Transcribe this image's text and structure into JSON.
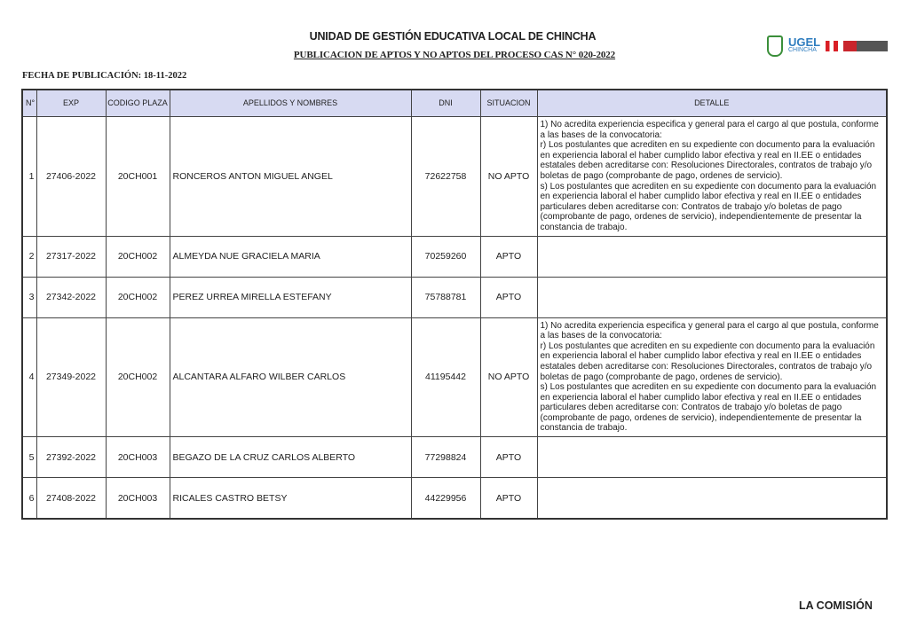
{
  "header": {
    "title": "UNIDAD DE GESTIÓN EDUCATIVA LOCAL DE CHINCHA",
    "subtitle": "PUBLICACION DE APTOS Y NO APTOS DEL PROCESO CAS N° 020-2022",
    "fecha": "FECHA DE PUBLICACIÓN: 18-11-2022",
    "logo": {
      "text": "UGEL",
      "sub": "CHINCHA"
    }
  },
  "table": {
    "columns": [
      "N°",
      "EXP",
      "CODIGO PLAZA",
      "APELLIDOS Y NOMBRES",
      "DNI",
      "SITUACION",
      "DETALLE"
    ],
    "detail_no_apto": [
      "1) No acredita experiencia especifica y general para el cargo al que postula, conforme a las bases de la convocatoria:",
      "r) Los postulantes que acrediten en su expediente con documento para la evaluación en experiencia laboral el haber cumplido labor efectiva y real en II.EE o entidades estatales deben acreditarse con: Resoluciones Directorales, contratos de trabajo y/o boletas de pago (comprobante de pago, ordenes de servicio).",
      "s) Los postulantes que acrediten en su expediente con documento para la evaluación en experiencia laboral el haber cumplido labor efectiva y real en II.EE o entidades particulares deben acreditarse con: Contratos de trabajo y/o boletas de pago (comprobante de pago, ordenes de servicio), independientemente de presentar la constancia de trabajo."
    ],
    "rows": [
      {
        "n": "1",
        "exp": "27406-2022",
        "codigo": "20CH001",
        "nombre": "RONCEROS ANTON MIGUEL ANGEL",
        "dni": "72622758",
        "situacion": "NO APTO"
      },
      {
        "n": "2",
        "exp": "27317-2022",
        "codigo": "20CH002",
        "nombre": "ALMEYDA NUE GRACIELA MARIA",
        "dni": "70259260",
        "situacion": "APTO"
      },
      {
        "n": "3",
        "exp": "27342-2022",
        "codigo": "20CH002",
        "nombre": "PEREZ URREA MIRELLA ESTEFANY",
        "dni": "75788781",
        "situacion": "APTO"
      },
      {
        "n": "4",
        "exp": "27349-2022",
        "codigo": "20CH002",
        "nombre": "ALCANTARA ALFARO WILBER CARLOS",
        "dni": "41195442",
        "situacion": "NO APTO"
      },
      {
        "n": "5",
        "exp": "27392-2022",
        "codigo": "20CH003",
        "nombre": "BEGAZO DE LA CRUZ CARLOS ALBERTO",
        "dni": "77298824",
        "situacion": "APTO"
      },
      {
        "n": "6",
        "exp": "27408-2022",
        "codigo": "20CH003",
        "nombre": "RICALES CASTRO BETSY",
        "dni": "44229956",
        "situacion": "APTO"
      }
    ]
  },
  "footer": {
    "comision": "LA COMISIÓN"
  },
  "colors": {
    "header_bg": "#d7daf2"
  }
}
